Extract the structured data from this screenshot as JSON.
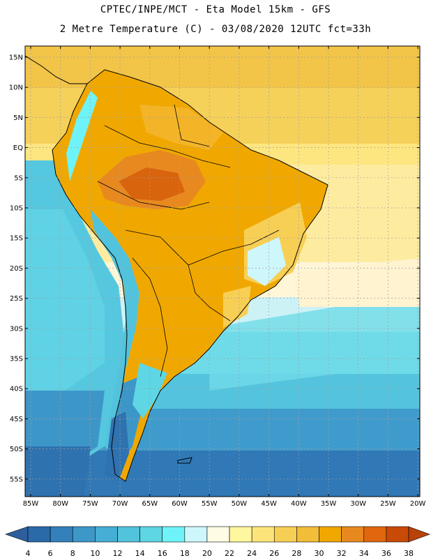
{
  "title_line1": "CPTEC/INPE/MCT -  Eta Model 15km - GFS",
  "title_line2": "2 Metre Temperature (C) - 03/08/2020 12UTC fct=33h",
  "lat_labels": [
    "15N",
    "10N",
    "5N",
    "EQ",
    "5S",
    "10S",
    "15S",
    "20S",
    "25S",
    "30S",
    "35S",
    "40S",
    "45S",
    "50S",
    "55S"
  ],
  "lon_labels": [
    "85W",
    "80W",
    "75W",
    "70W",
    "65W",
    "60W",
    "55W",
    "50W",
    "45W",
    "40W",
    "35W",
    "30W",
    "25W",
    "20W"
  ],
  "colorbar": {
    "labels": [
      "4",
      "6",
      "8",
      "10",
      "12",
      "14",
      "16",
      "18",
      "20",
      "22",
      "24",
      "26",
      "28",
      "30",
      "32",
      "34",
      "36",
      "38"
    ],
    "colors": [
      "#2a6aa8",
      "#3380bb",
      "#3d98c8",
      "#46aed4",
      "#52c3dc",
      "#5ed6e4",
      "#6ef4f8",
      "#cdf7fb",
      "#fffbe5",
      "#fff6a0",
      "#fde47a",
      "#f8cf55",
      "#f2bd38",
      "#f0a800",
      "#e88920",
      "#e0670e",
      "#c84a06"
    ],
    "low_color": "#2e5e9c",
    "high_color": "#b8420a"
  }
}
